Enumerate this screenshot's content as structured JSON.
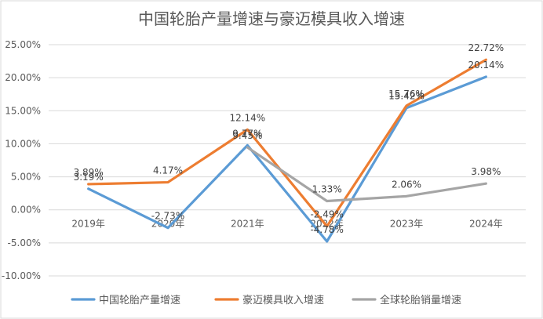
{
  "chart_data": {
    "type": "line",
    "title": "中国轮胎产量增速与豪迈模具收入增速",
    "categories": [
      "2019年",
      "2020年",
      "2021年",
      "2022年",
      "2023年",
      "2024年"
    ],
    "ylim": [
      -0.1,
      0.25
    ],
    "yticks": [
      -0.1,
      -0.05,
      0.0,
      0.05,
      0.1,
      0.15,
      0.2,
      0.25
    ],
    "ytick_labels": [
      "-10.00%",
      "-5.00%",
      "0.00%",
      "5.00%",
      "10.00%",
      "15.00%",
      "20.00%",
      "25.00%"
    ],
    "grid": true,
    "legend_position": "bottom",
    "series": [
      {
        "name": "中国轮胎产量增速",
        "color": "#5B9BD5",
        "values": [
          0.0319,
          -0.0273,
          0.0977,
          -0.0478,
          0.1542,
          0.2014
        ],
        "labels": [
          "3.19%",
          "-2.73%",
          "9.77%",
          "-4.78%",
          "15.42%",
          "20.14%"
        ]
      },
      {
        "name": "豪迈模具收入增速",
        "color": "#ED7D31",
        "values": [
          0.0389,
          0.0417,
          0.1214,
          -0.0249,
          0.1576,
          0.2272
        ],
        "labels": [
          "3.89%",
          "4.17%",
          "12.14%",
          "-2.49%",
          "15.76%",
          "22.72%"
        ]
      },
      {
        "name": "全球轮胎销量增速",
        "color": "#A5A5A5",
        "values": [
          null,
          null,
          0.0945,
          0.0133,
          0.0206,
          0.0398
        ],
        "labels": [
          null,
          null,
          "9.45%",
          "1.33%",
          "2.06%",
          "3.98%"
        ]
      }
    ]
  }
}
